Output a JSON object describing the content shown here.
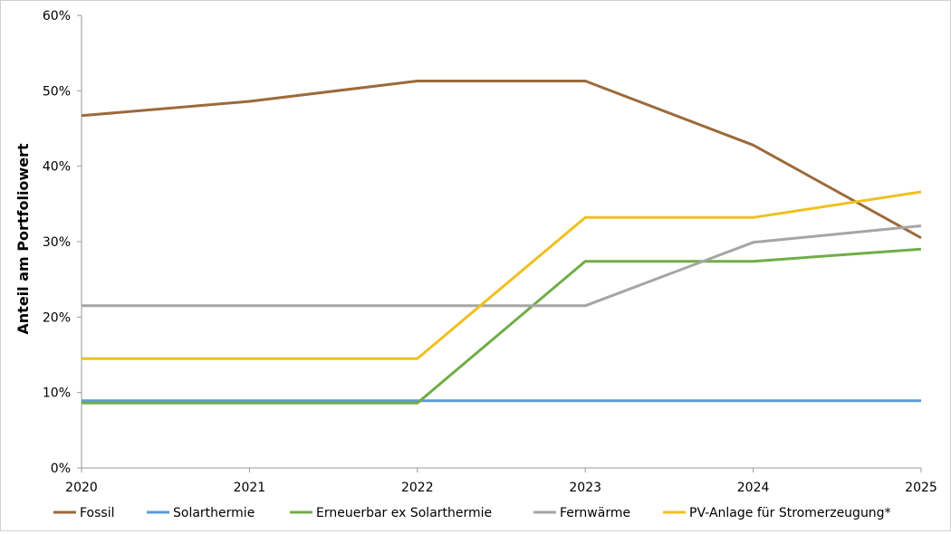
{
  "chart_data": {
    "type": "line",
    "title": "",
    "xlabel": "",
    "ylabel": "Anteil  am Portfoliowert",
    "x": [
      "2020",
      "2021",
      "2022",
      "2023",
      "2024",
      "2025"
    ],
    "ylim": [
      0,
      60
    ],
    "y_ticks": [
      0,
      10,
      20,
      30,
      40,
      50,
      60
    ],
    "y_tick_labels": [
      "0%",
      "10%",
      "20%",
      "30%",
      "40%",
      "50%",
      "60%"
    ],
    "grid": false,
    "legend_position": "bottom",
    "series": [
      {
        "name": "Fossil",
        "color": "#9c6a3a",
        "values": [
          46.7,
          48.6,
          51.3,
          51.3,
          42.8,
          30.5
        ]
      },
      {
        "name": "Solarthermie",
        "color": "#5b9bd5",
        "values": [
          8.9,
          8.9,
          8.9,
          8.9,
          8.9,
          8.9
        ]
      },
      {
        "name": "Erneuerbar ex Solarthermie",
        "color": "#70ad47",
        "values": [
          8.6,
          8.6,
          8.6,
          27.4,
          27.4,
          29.0
        ]
      },
      {
        "name": "Fernwärme",
        "color": "#a5a5a5",
        "values": [
          21.5,
          21.5,
          21.5,
          21.5,
          29.9,
          32.1
        ]
      },
      {
        "name": "PV-Anlage für Stromerzeugung*",
        "color": "#f0c020",
        "values": [
          14.5,
          14.5,
          14.5,
          33.2,
          33.2,
          36.6
        ]
      }
    ]
  }
}
